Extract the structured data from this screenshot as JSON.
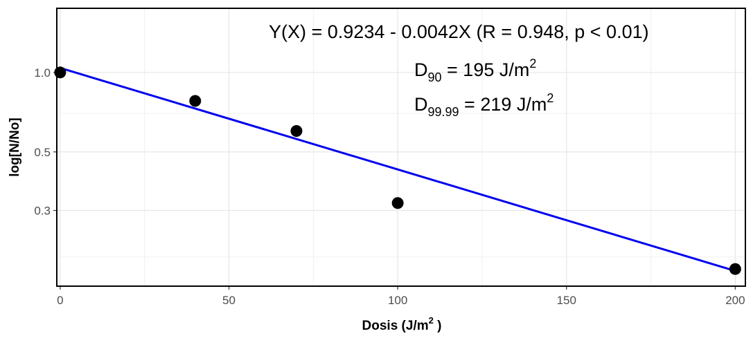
{
  "chart_data": {
    "type": "scatter",
    "xlabel": "Dosis (J/m",
    "xlabel_sup": "2",
    "xlabel_end": " )",
    "ylabel": "log[N/No]",
    "xlim": [
      -1,
      203
    ],
    "ylim": [
      0.155,
      1.75
    ],
    "y_scale": "log",
    "x_ticks": [
      0,
      50,
      100,
      150,
      200
    ],
    "x_tick_labels": [
      "0",
      "50",
      "100",
      "150",
      "200"
    ],
    "x_minor_ticks": [
      25,
      75,
      125,
      175
    ],
    "y_ticks": [
      1.0,
      0.5,
      0.3
    ],
    "y_tick_labels": [
      "1.0",
      "0.5",
      "0.3"
    ],
    "y_grid_lines": [
      0.7,
      0.2
    ],
    "grid": true,
    "points": [
      {
        "x": 0,
        "y": 1.0
      },
      {
        "x": 40,
        "y": 0.78
      },
      {
        "x": 70,
        "y": 0.6
      },
      {
        "x": 100,
        "y": 0.32
      },
      {
        "x": 200,
        "y": 0.18
      }
    ],
    "fit_line": {
      "x": [
        0,
        200
      ],
      "y": [
        1.04,
        0.177
      ],
      "color": "#0000ee"
    },
    "point_color": "#000000",
    "annotations": {
      "equation": "Y(X) = 0.9234 - 0.0042X (R = 0.948, p < 0.01)",
      "d90_main": "D",
      "d90_sub": "90",
      "d90_value": " = 195  J/m",
      "d90_sup": "2",
      "d9999_main": "D",
      "d9999_sub": "99.99",
      "d9999_value": " = 219  J/m",
      "d9999_sup": "2"
    }
  }
}
